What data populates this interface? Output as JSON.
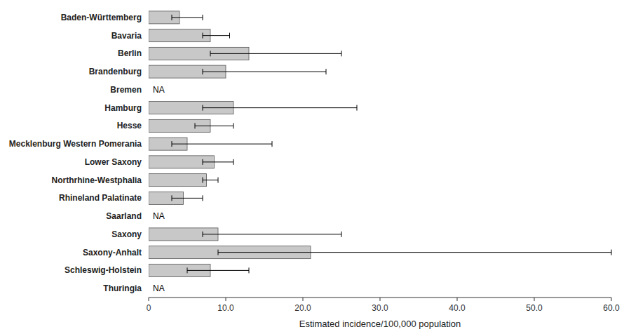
{
  "chart_data": {
    "type": "bar",
    "orientation": "horizontal",
    "categories": [
      "Baden-Württemberg",
      "Bavaria",
      "Berlin",
      "Brandenburg",
      "Bremen",
      "Hamburg",
      "Hesse",
      "Mecklenburg Western Pomerania",
      "Lower Saxony",
      "Northrhine-Westphalia",
      "Rhineland Palatinate",
      "Saarland",
      "Saxony",
      "Saxony-Anhalt",
      "Schleswig-Holstein",
      "Thuringia"
    ],
    "values": [
      4.0,
      8.0,
      13.0,
      10.0,
      null,
      11.0,
      8.0,
      5.0,
      8.5,
      7.5,
      4.5,
      null,
      9.0,
      21.0,
      8.0,
      null
    ],
    "value_labels": [
      null,
      null,
      null,
      null,
      "NA",
      null,
      null,
      null,
      null,
      null,
      null,
      "NA",
      null,
      null,
      null,
      "NA"
    ],
    "ci_lower": [
      3.0,
      7.0,
      8.0,
      7.0,
      null,
      7.0,
      6.0,
      3.0,
      7.0,
      7.0,
      3.0,
      null,
      7.0,
      9.0,
      5.0,
      null
    ],
    "ci_upper": [
      7.0,
      10.5,
      25.0,
      23.0,
      null,
      27.0,
      11.0,
      16.0,
      11.0,
      9.0,
      7.0,
      null,
      25.0,
      60.0,
      13.0,
      null
    ],
    "color": "#c8c8c8",
    "x_label": "Estimated incidence/100,000 population",
    "xlim": [
      0,
      60
    ],
    "xticks": [
      0,
      {
        "value": 10.0,
        "label": "10.0"
      },
      {
        "value": 20.0,
        "label": "20.0"
      },
      {
        "value": 30.0,
        "label": "30.0"
      },
      {
        "value": 40.0,
        "label": "40.0"
      },
      {
        "value": 50.0,
        "label": "50.0"
      },
      {
        "value": 60.0,
        "label": "60.0"
      }
    ],
    "grid": false
  }
}
